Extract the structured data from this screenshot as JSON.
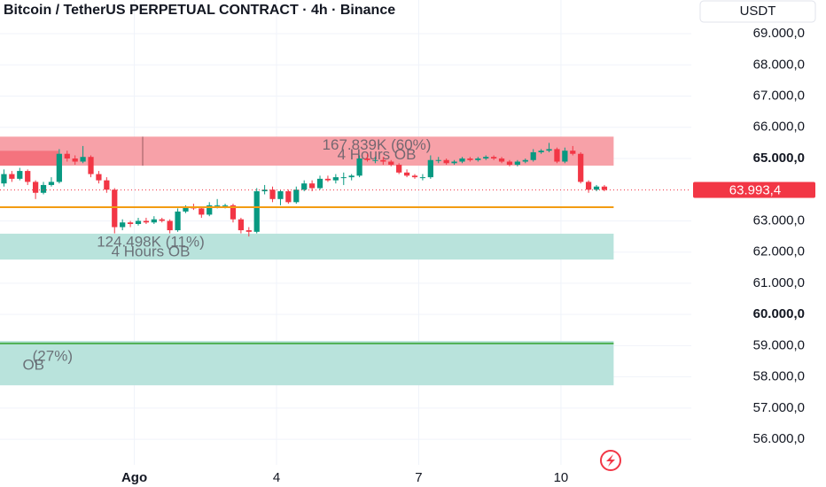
{
  "chart_data": {
    "type": "candlestick",
    "title": "Bitcoin / TetherUS PERPETUAL CONTRACT · 4h · Binance",
    "currency": "USDT",
    "up_color": "#089981",
    "down_color": "#f23645",
    "grid": true,
    "xlim": [
      -0.5,
      87
    ],
    "xticks": [
      {
        "value": 16.5,
        "label": "Ago"
      },
      {
        "value": 34.5,
        "label": "4"
      },
      {
        "value": 52.5,
        "label": "7"
      },
      {
        "value": 70.5,
        "label": "10"
      }
    ],
    "ylim": [
      55180,
      70080
    ],
    "yticks": [
      {
        "value": 69000,
        "label": "69.000,0"
      },
      {
        "value": 68000,
        "label": "68.000,0"
      },
      {
        "value": 67000,
        "label": "67.000,0"
      },
      {
        "value": 66000,
        "label": "66.000,0"
      },
      {
        "value": 65000,
        "label": "65.000,0"
      },
      {
        "value": 63000,
        "label": "63.000,0"
      },
      {
        "value": 62000,
        "label": "62.000,0"
      },
      {
        "value": 61000,
        "label": "61.000,0"
      },
      {
        "value": 60000,
        "label": "60.000,0"
      },
      {
        "value": 59000,
        "label": "59.000,0"
      },
      {
        "value": 58000,
        "label": "58.000,0"
      },
      {
        "value": 57000,
        "label": "57.000,0"
      },
      {
        "value": 56000,
        "label": "56.000,0"
      }
    ],
    "last_price": {
      "value": 63993.4,
      "label": "63.993,4"
    },
    "candles": [
      [
        64200,
        64650,
        64100,
        64500
      ],
      [
        64500,
        64600,
        64250,
        64350
      ],
      [
        64350,
        64700,
        64300,
        64600
      ],
      [
        64600,
        64650,
        64150,
        64250
      ],
      [
        64250,
        64300,
        63700,
        63900
      ],
      [
        63900,
        64250,
        63850,
        64150
      ],
      [
        64150,
        64400,
        64100,
        64250
      ],
      [
        64250,
        65300,
        64200,
        65150
      ],
      [
        65150,
        65250,
        64900,
        65000
      ],
      [
        65000,
        65100,
        64800,
        64900
      ],
      [
        64900,
        65400,
        64850,
        65050
      ],
      [
        65050,
        65100,
        64400,
        64500
      ],
      [
        64500,
        64600,
        64200,
        64300
      ],
      [
        64300,
        64400,
        63900,
        64000
      ],
      [
        64000,
        64050,
        62600,
        62800
      ],
      [
        62800,
        63050,
        62700,
        62950
      ],
      [
        62950,
        63000,
        62800,
        62900
      ],
      [
        62900,
        63100,
        62850,
        63000
      ],
      [
        63000,
        63100,
        62900,
        62950
      ],
      [
        62950,
        63150,
        62900,
        63050
      ],
      [
        63050,
        63100,
        62950,
        63000
      ],
      [
        63000,
        63050,
        62600,
        62700
      ],
      [
        62700,
        63400,
        62650,
        63300
      ],
      [
        63300,
        63500,
        63250,
        63450
      ],
      [
        63450,
        63550,
        63350,
        63400
      ],
      [
        63400,
        63450,
        63100,
        63200
      ],
      [
        63200,
        63600,
        63150,
        63500
      ],
      [
        63500,
        63700,
        63400,
        63500
      ],
      [
        63500,
        63550,
        63400,
        63500
      ],
      [
        63500,
        63550,
        62950,
        63050
      ],
      [
        63050,
        63100,
        62600,
        62700
      ],
      [
        62700,
        62800,
        62500,
        62650
      ],
      [
        62650,
        64050,
        62600,
        63950
      ],
      [
        63950,
        64150,
        63850,
        64000
      ],
      [
        64000,
        64100,
        63600,
        63700
      ],
      [
        63700,
        64000,
        63500,
        63950
      ],
      [
        63950,
        64000,
        63550,
        63600
      ],
      [
        63600,
        64100,
        63550,
        64000
      ],
      [
        64000,
        64300,
        63950,
        64200
      ],
      [
        64200,
        64300,
        63950,
        64050
      ],
      [
        64050,
        64450,
        64000,
        64350
      ],
      [
        64350,
        64450,
        64250,
        64300
      ],
      [
        64300,
        64500,
        64200,
        64400
      ],
      [
        64400,
        64550,
        64150,
        64400
      ],
      [
        64400,
        64500,
        64300,
        64450
      ],
      [
        64450,
        65100,
        64400,
        65000
      ],
      [
        65000,
        65150,
        64900,
        64950
      ],
      [
        64950,
        65050,
        64850,
        64950
      ],
      [
        64950,
        65050,
        64800,
        64900
      ],
      [
        64900,
        64950,
        64750,
        64800
      ],
      [
        64800,
        64850,
        64500,
        64550
      ],
      [
        64550,
        64650,
        64400,
        64450
      ],
      [
        64450,
        64500,
        64350,
        64400
      ],
      [
        64400,
        64500,
        64300,
        64400
      ],
      [
        64400,
        65100,
        64350,
        64950
      ],
      [
        64950,
        65050,
        64850,
        64950
      ],
      [
        64950,
        65000,
        64800,
        64850
      ],
      [
        64850,
        64950,
        64800,
        64900
      ],
      [
        64900,
        65050,
        64850,
        65000
      ],
      [
        65000,
        65050,
        64900,
        64950
      ],
      [
        64950,
        65050,
        64900,
        65000
      ],
      [
        65000,
        65100,
        64950,
        65050
      ],
      [
        65050,
        65100,
        64950,
        65000
      ],
      [
        65000,
        65050,
        64850,
        64900
      ],
      [
        64900,
        64950,
        64750,
        64800
      ],
      [
        64800,
        64950,
        64750,
        64900
      ],
      [
        64900,
        65000,
        64850,
        64950
      ],
      [
        64950,
        65300,
        64900,
        65200
      ],
      [
        65200,
        65300,
        65150,
        65250
      ],
      [
        65250,
        65500,
        65200,
        65300
      ],
      [
        65300,
        65350,
        64850,
        64900
      ],
      [
        64900,
        65350,
        64850,
        65250
      ],
      [
        65250,
        65400,
        65100,
        65150
      ],
      [
        65150,
        65200,
        64200,
        64250
      ],
      [
        64250,
        64300,
        63900,
        64000
      ],
      [
        64000,
        64150,
        63950,
        64100
      ],
      [
        64100,
        64150,
        63950,
        63993.4
      ]
    ],
    "zones": [
      {
        "top": 65700,
        "bottom": 64770,
        "color": "#f7a1a8",
        "lines": [
          "167.839K (60%)",
          "4 Hours OB"
        ]
      },
      {
        "top": 62590,
        "bottom": 61760,
        "color": "#b9e3dc",
        "lines": [
          "124.498K (11%)",
          "4 Hours OB"
        ]
      },
      {
        "top": 59150,
        "bottom": 57730,
        "color": "#b9e3dc",
        "lines": [
          "(27%)",
          "OB"
        ]
      }
    ],
    "levels": [
      {
        "value": 63440,
        "color": "#f39c12"
      },
      {
        "value": 59070,
        "color": "#4caf50"
      }
    ]
  }
}
